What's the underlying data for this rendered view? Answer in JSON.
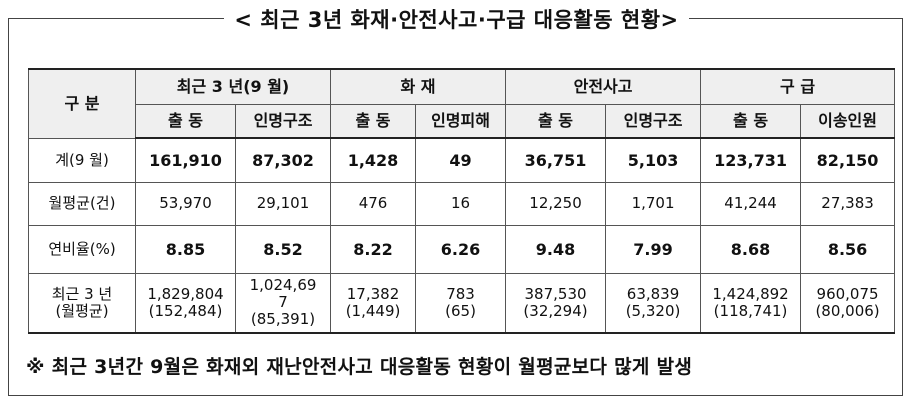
{
  "title": "< 최근 3년 화재·안전사고·구급 대응활동 현황>",
  "table": {
    "corner": "구 분",
    "groups": [
      "최근 3 년(9 월)",
      "화 재",
      "안전사고",
      "구 급"
    ],
    "subheaders": [
      "출 동",
      "인명구조",
      "출 동",
      "인명피해",
      "출 동",
      "인명구조",
      "출 동",
      "이송인원"
    ],
    "rows": [
      {
        "bold": true,
        "label": [
          "계(9 월)"
        ],
        "cells": [
          [
            "161,910"
          ],
          [
            "87,302"
          ],
          [
            "1,428"
          ],
          [
            "49"
          ],
          [
            "36,751"
          ],
          [
            "5,103"
          ],
          [
            "123,731"
          ],
          [
            "82,150"
          ]
        ]
      },
      {
        "bold": false,
        "label": [
          "월평균(건)"
        ],
        "cells": [
          [
            "53,970"
          ],
          [
            "29,101"
          ],
          [
            "476"
          ],
          [
            "16"
          ],
          [
            "12,250"
          ],
          [
            "1,701"
          ],
          [
            "41,244"
          ],
          [
            "27,383"
          ]
        ]
      },
      {
        "bold": true,
        "label": [
          "연비율(%)"
        ],
        "cells": [
          [
            "8.85"
          ],
          [
            "8.52"
          ],
          [
            "8.22"
          ],
          [
            "6.26"
          ],
          [
            "9.48"
          ],
          [
            "7.99"
          ],
          [
            "8.68"
          ],
          [
            "8.56"
          ]
        ]
      },
      {
        "bold": false,
        "label": [
          "최근 3 년",
          "(월평균)"
        ],
        "cells": [
          [
            "1,829,804",
            "(152,484)"
          ],
          [
            "1,024,69",
            "7",
            "(85,391)"
          ],
          [
            "17,382",
            "(1,449)"
          ],
          [
            "783",
            "(65)"
          ],
          [
            "387,530",
            "(32,294)"
          ],
          [
            "63,839",
            "(5,320)"
          ],
          [
            "1,424,892",
            "(118,741)"
          ],
          [
            "960,075",
            "(80,006)"
          ]
        ]
      }
    ]
  },
  "note": "※ 최근 3년간 9월은 화재외 재난안전사고 대응활동 현황이 월평균보다 많게 발생"
}
